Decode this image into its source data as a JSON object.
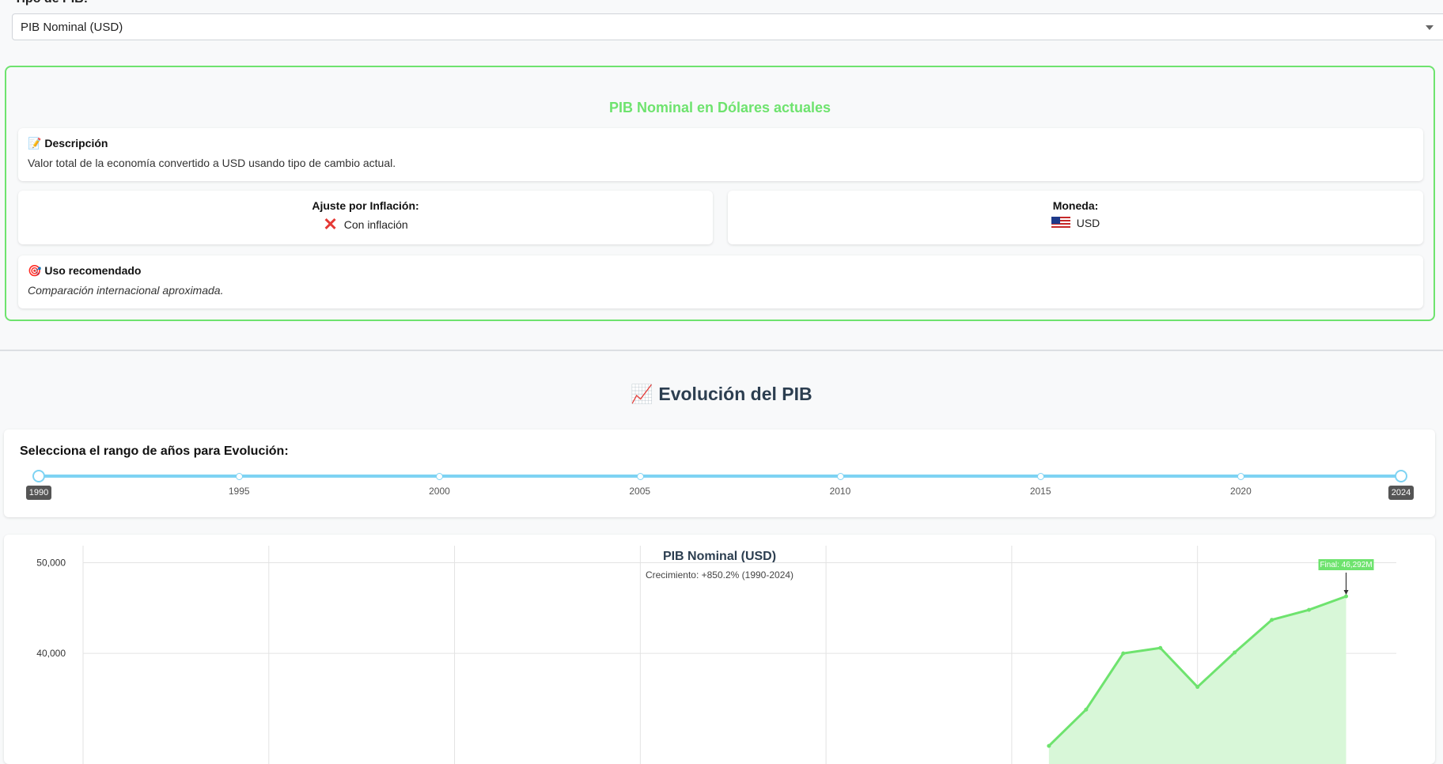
{
  "selector": {
    "label": "Tipo de PIB:",
    "selected": "PIB Nominal (USD)"
  },
  "info": {
    "title": "PIB Nominal en Dólares actuales",
    "accent_color": "#6ee36e",
    "description_icon": "📝",
    "description_heading": "Descripción",
    "description_text": "Valor total de la economía convertido a USD usando tipo de cambio actual.",
    "inflation_label": "Ajuste por Inflación:",
    "inflation_icon": "cross-mark-icon",
    "inflation_value": "Con inflación",
    "currency_label": "Moneda:",
    "currency_icon": "us-flag-icon",
    "currency_value": "USD",
    "usage_icon": "🎯",
    "usage_heading": "Uso recomendado",
    "usage_text": "Comparación internacional aproximada."
  },
  "evolution": {
    "icon": "📈",
    "title": "Evolución del PIB"
  },
  "range_slider": {
    "label": "Selecciona el rango de años para Evolución:",
    "min": 1990,
    "max": 2024,
    "start": 1990,
    "end": 2024,
    "start_label": "1990",
    "end_label": "2024",
    "marks": [
      "1995",
      "2000",
      "2005",
      "2010",
      "2015",
      "2020"
    ],
    "track_color": "#7ed3f3"
  },
  "chart_data": {
    "type": "area",
    "title": "PIB Nominal (USD)",
    "subtitle": "Crecimiento: +850.2% (1990-2024)",
    "xlabel": "",
    "ylabel": "",
    "xlim": [
      1990,
      2024.5
    ],
    "ylim": [
      28500,
      51000
    ],
    "y_ticks": [
      40000,
      50000
    ],
    "y_tick_labels": [
      "40,000",
      "50,000"
    ],
    "x_gridlines": [
      1990,
      1995,
      2000,
      2005,
      2010,
      2015,
      2020
    ],
    "grid": true,
    "line_color": "#6ee36e",
    "fill_color": "#d8f7d8",
    "series": [
      {
        "x": [
          2016,
          2017,
          2018,
          2019,
          2020,
          2021,
          2022,
          2023,
          2024
        ],
        "values": [
          29800,
          33800,
          40000,
          40600,
          36300,
          40100,
          43700,
          44800,
          46292
        ]
      }
    ],
    "annotation": {
      "text": "Final: 46,292M",
      "x": 2024,
      "y": 46292,
      "bg_color": "#6ee36e"
    }
  }
}
